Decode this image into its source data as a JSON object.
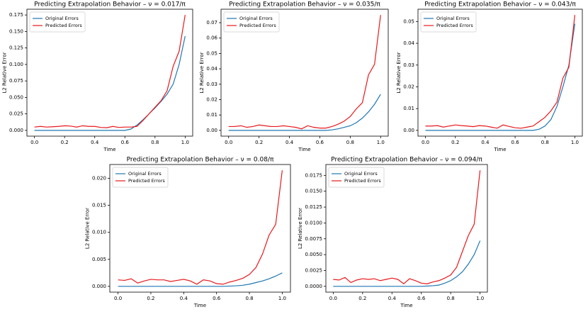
{
  "chart_data": [
    {
      "type": "line",
      "title": "Predicting Extrapolation Behavior – ν = 0.017/π",
      "xlabel": "Time",
      "ylabel": "L2 Relative Error",
      "legend": "upper left",
      "x": [
        0,
        0.04,
        0.08,
        0.12,
        0.16,
        0.2,
        0.24,
        0.28,
        0.32,
        0.36,
        0.4,
        0.44,
        0.48,
        0.52,
        0.56,
        0.6,
        0.64,
        0.68,
        0.72,
        0.76,
        0.8,
        0.84,
        0.88,
        0.92,
        0.96,
        1.0
      ],
      "xlim": [
        -0.05,
        1.05
      ],
      "xticks": [
        {
          "value": 0,
          "label": "0.0"
        },
        0.2,
        0.4,
        0.6,
        0.8,
        {
          "value": 1,
          "label": "1.0"
        }
      ],
      "ylim": [
        -0.00875,
        0.18375
      ],
      "yticks": [
        {
          "value": 0,
          "label": "0.000"
        },
        0.025,
        {
          "value": 0.05,
          "label": "0.050"
        },
        0.075,
        {
          "value": 0.1,
          "label": "0.100"
        },
        0.125,
        {
          "value": 0.15,
          "label": "0.150"
        },
        0.175
      ],
      "series": [
        {
          "name": "Original Errors",
          "color": "#1f77b4",
          "values": [
            0,
            0,
            0,
            0,
            0,
            0,
            0,
            0,
            0,
            0,
            0,
            0,
            0,
            0,
            0,
            0,
            0.002,
            0.008,
            0.016,
            0.025,
            0.034,
            0.044,
            0.055,
            0.07,
            0.1,
            0.143
          ]
        },
        {
          "name": "Predicted Errors",
          "color": "#e8191c",
          "values": [
            0.005,
            0.006,
            0.005,
            0.0055,
            0.006,
            0.007,
            0.0065,
            0.005,
            0.007,
            0.006,
            0.006,
            0.0045,
            0.004,
            0.006,
            0.0045,
            0.005,
            0.005,
            0.006,
            0.015,
            0.025,
            0.035,
            0.045,
            0.06,
            0.097,
            0.12,
            0.175
          ]
        }
      ]
    },
    {
      "type": "line",
      "title": "Predicting Extrapolation Behavior – ν = 0.035/π",
      "xlabel": "Time",
      "ylabel": "L2 Relative Error",
      "legend": "upper left",
      "x": [
        0,
        0.04,
        0.08,
        0.12,
        0.16,
        0.2,
        0.24,
        0.28,
        0.32,
        0.36,
        0.4,
        0.44,
        0.48,
        0.52,
        0.56,
        0.6,
        0.64,
        0.68,
        0.72,
        0.76,
        0.8,
        0.84,
        0.88,
        0.92,
        0.96,
        1.0
      ],
      "xlim": [
        -0.05,
        1.05
      ],
      "xticks": [
        {
          "value": 0,
          "label": "0.0"
        },
        0.2,
        0.4,
        0.6,
        0.8,
        {
          "value": 1,
          "label": "1.0"
        }
      ],
      "ylim": [
        -0.00375,
        0.07875
      ],
      "yticks": [
        {
          "value": 0,
          "label": "0.00"
        },
        0.01,
        0.02,
        0.03,
        0.04,
        0.05,
        0.06,
        0.07
      ],
      "series": [
        {
          "name": "Original Errors",
          "color": "#1f77b4",
          "values": [
            0,
            0,
            0,
            0,
            0,
            0,
            0,
            0,
            0,
            0,
            0,
            0,
            0,
            0,
            0,
            0,
            0,
            0.0003,
            0.001,
            0.002,
            0.003,
            0.005,
            0.008,
            0.012,
            0.017,
            0.0235
          ]
        },
        {
          "name": "Predicted Errors",
          "color": "#e8191c",
          "values": [
            0.0025,
            0.0025,
            0.003,
            0.002,
            0.0025,
            0.0035,
            0.003,
            0.0025,
            0.0025,
            0.003,
            0.0025,
            0.002,
            0.001,
            0.003,
            0.002,
            0.0015,
            0.0015,
            0.0025,
            0.004,
            0.006,
            0.009,
            0.014,
            0.018,
            0.036,
            0.043,
            0.075
          ]
        }
      ]
    },
    {
      "type": "line",
      "title": "Predicting Extrapolation Behavior – ν = 0.043/π",
      "xlabel": "Time",
      "ylabel": "L2 Relative Error",
      "legend": "upper left",
      "x": [
        0,
        0.04,
        0.08,
        0.12,
        0.16,
        0.2,
        0.24,
        0.28,
        0.32,
        0.36,
        0.4,
        0.44,
        0.48,
        0.52,
        0.56,
        0.6,
        0.64,
        0.68,
        0.72,
        0.76,
        0.8,
        0.84,
        0.88,
        0.92,
        0.96,
        1.0
      ],
      "xlim": [
        -0.05,
        1.05
      ],
      "xticks": [
        {
          "value": 0,
          "label": "0.0"
        },
        0.2,
        0.4,
        0.6,
        0.8,
        {
          "value": 1,
          "label": "1.0"
        }
      ],
      "ylim": [
        -0.00265,
        0.05565
      ],
      "yticks": [
        {
          "value": 0,
          "label": "0.00"
        },
        0.01,
        0.02,
        0.03,
        0.04,
        0.05
      ],
      "series": [
        {
          "name": "Original Errors",
          "color": "#1f77b4",
          "values": [
            0,
            0,
            0,
            0,
            0,
            0,
            0,
            0,
            0,
            0,
            0,
            0,
            0,
            0,
            0,
            0,
            0,
            0,
            0,
            0.0005,
            0.002,
            0.005,
            0.011,
            0.02,
            0.03,
            0.049
          ]
        },
        {
          "name": "Predicted Errors",
          "color": "#e8191c",
          "values": [
            0.002,
            0.002,
            0.0022,
            0.0015,
            0.002,
            0.0025,
            0.0022,
            0.002,
            0.0017,
            0.0022,
            0.002,
            0.0015,
            0.001,
            0.0025,
            0.0018,
            0.0012,
            0.001,
            0.0015,
            0.002,
            0.004,
            0.006,
            0.009,
            0.013,
            0.024,
            0.029,
            0.053
          ]
        }
      ]
    },
    {
      "type": "line",
      "title": "Predicting Extrapolation Behavior – ν = 0.08/π",
      "xlabel": "Time",
      "ylabel": "L2 Relative Error",
      "legend": "upper left",
      "x": [
        0,
        0.04,
        0.08,
        0.12,
        0.16,
        0.2,
        0.24,
        0.28,
        0.32,
        0.36,
        0.4,
        0.44,
        0.48,
        0.52,
        0.56,
        0.6,
        0.64,
        0.68,
        0.72,
        0.76,
        0.8,
        0.84,
        0.88,
        0.92,
        0.96,
        1.0
      ],
      "xlim": [
        -0.05,
        1.05
      ],
      "xticks": [
        {
          "value": 0,
          "label": "0.0"
        },
        0.2,
        0.4,
        0.6,
        0.8,
        {
          "value": 1,
          "label": "1.0"
        }
      ],
      "ylim": [
        -0.001075,
        0.022575
      ],
      "yticks": [
        {
          "value": 0,
          "label": "0.000"
        },
        0.005,
        {
          "value": 0.01,
          "label": "0.010"
        },
        0.015,
        {
          "value": 0.02,
          "label": "0.020"
        }
      ],
      "series": [
        {
          "name": "Original Errors",
          "color": "#1f77b4",
          "values": [
            0,
            0,
            0,
            0,
            0,
            0,
            0,
            0,
            0,
            0,
            0,
            0,
            0,
            0,
            0,
            0,
            0,
            5e-05,
            0.0001,
            0.0002,
            0.0004,
            0.0007,
            0.001,
            0.0014,
            0.0019,
            0.0025
          ]
        },
        {
          "name": "Predicted Errors",
          "color": "#e8191c",
          "values": [
            0.0012,
            0.0011,
            0.0014,
            0.0006,
            0.001,
            0.0013,
            0.0012,
            0.0012,
            0.0009,
            0.0011,
            0.0013,
            0.001,
            0.0004,
            0.0012,
            0.001,
            0.0005,
            0.0004,
            0.0008,
            0.0011,
            0.0015,
            0.0022,
            0.0035,
            0.006,
            0.0095,
            0.0115,
            0.0215
          ]
        }
      ]
    },
    {
      "type": "line",
      "title": "Predicting Extrapolation Behavior – ν = 0.094/π",
      "xlabel": "Time",
      "ylabel": "L2 Relative Error",
      "legend": "upper left",
      "x": [
        0,
        0.04,
        0.08,
        0.12,
        0.16,
        0.2,
        0.24,
        0.28,
        0.32,
        0.36,
        0.4,
        0.44,
        0.48,
        0.52,
        0.56,
        0.6,
        0.64,
        0.68,
        0.72,
        0.76,
        0.8,
        0.84,
        0.88,
        0.92,
        0.96,
        1.0
      ],
      "xlim": [
        -0.05,
        1.05
      ],
      "xticks": [
        {
          "value": 0,
          "label": "0.0"
        },
        0.2,
        0.4,
        0.6,
        0.8,
        {
          "value": 1,
          "label": "1.0"
        }
      ],
      "ylim": [
        -0.000915,
        0.019215
      ],
      "yticks": [
        {
          "value": 0,
          "label": "0.0000"
        },
        0.0025,
        {
          "value": 0.005,
          "label": "0.0050"
        },
        0.0075,
        {
          "value": 0.01,
          "label": "0.0100"
        },
        0.0125,
        {
          "value": 0.015,
          "label": "0.0150"
        },
        0.0175
      ],
      "series": [
        {
          "name": "Original Errors",
          "color": "#1f77b4",
          "values": [
            0,
            0,
            0,
            0,
            0,
            0,
            0,
            0,
            0,
            0,
            0,
            0,
            0,
            0,
            0,
            0,
            5e-05,
            0.0001,
            0.0002,
            0.0005,
            0.0009,
            0.0015,
            0.0023,
            0.0035,
            0.005,
            0.0072
          ]
        },
        {
          "name": "Predicted Errors",
          "color": "#e8191c",
          "values": [
            0.0011,
            0.001,
            0.0014,
            0.0006,
            0.001,
            0.0012,
            0.0011,
            0.0012,
            0.0009,
            0.0011,
            0.0013,
            0.0011,
            0.0004,
            0.0012,
            0.0009,
            0.0005,
            0.0004,
            0.0007,
            0.0009,
            0.0013,
            0.0018,
            0.003,
            0.0055,
            0.008,
            0.0098,
            0.0183
          ]
        }
      ]
    }
  ]
}
